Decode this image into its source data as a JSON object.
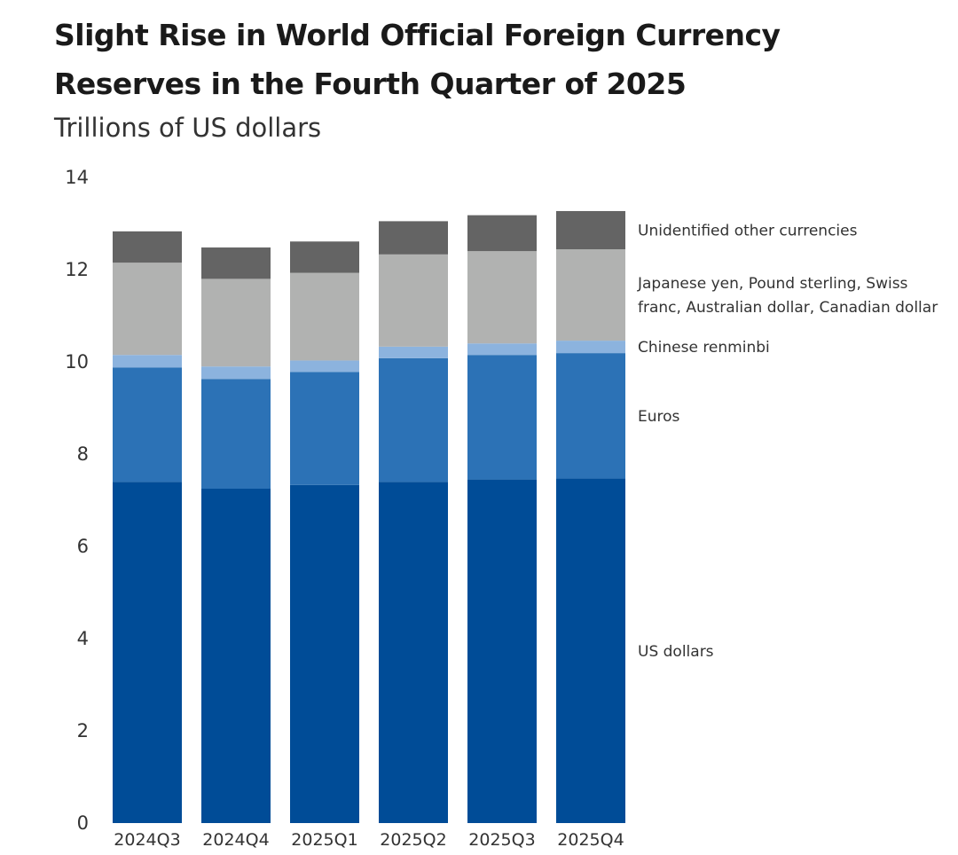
{
  "chart_data": {
    "type": "bar",
    "stacked": true,
    "title": "Slight Rise in World Official Foreign Currency Reserves in the Fourth Quarter of 2025",
    "subtitle": "Trillions of US dollars",
    "categories": [
      "2024Q3",
      "2024Q4",
      "2025Q1",
      "2025Q2",
      "2025Q3",
      "2025Q4"
    ],
    "ylim": [
      0,
      14
    ],
    "yticks": [
      0,
      2,
      4,
      6,
      8,
      10,
      12,
      14
    ],
    "grid": false,
    "legend_position": "right, labels aligned to final bar segments",
    "series": [
      {
        "name": "US dollars",
        "legend_lines": [
          "US dollars"
        ],
        "color": "#004c97",
        "values": [
          7.4,
          7.25,
          7.33,
          7.4,
          7.45,
          7.47
        ]
      },
      {
        "name": "Euros",
        "legend_lines": [
          "Euros"
        ],
        "color": "#2c72b6",
        "values": [
          2.48,
          2.38,
          2.45,
          2.68,
          2.7,
          2.72
        ]
      },
      {
        "name": "Chinese renminbi",
        "legend_lines": [
          "Chinese renminbi"
        ],
        "color": "#8cb3de",
        "values": [
          0.27,
          0.27,
          0.25,
          0.25,
          0.25,
          0.27
        ]
      },
      {
        "name": "Japanese yen, Pound sterling, Swiss franc, Australian dollar, Canadian dollar",
        "legend_lines": [
          "Japanese yen, Pound sterling, Swiss",
          "franc, Australian dollar, Canadian dollar"
        ],
        "color": "#b1b2b1",
        "values": [
          2.0,
          1.9,
          1.9,
          2.0,
          2.0,
          1.98
        ]
      },
      {
        "name": "Unidentified other currencies",
        "legend_lines": [
          "Unidentified other currencies"
        ],
        "color": "#646464",
        "values": [
          0.68,
          0.68,
          0.68,
          0.72,
          0.78,
          0.83
        ]
      }
    ]
  }
}
